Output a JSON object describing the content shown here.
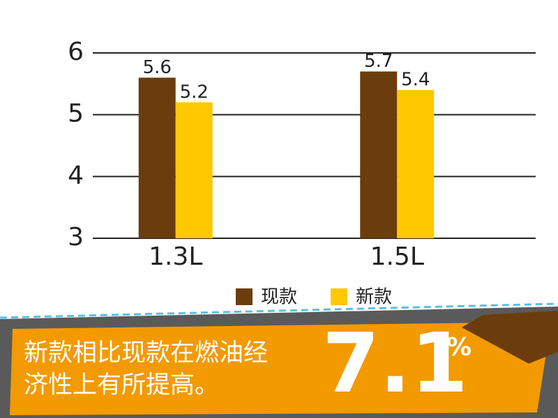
{
  "chart_data": {
    "type": "bar",
    "categories": [
      "1.3L",
      "1.5L"
    ],
    "series": [
      {
        "name": "现款",
        "color": "#6b3d0c",
        "values": [
          5.6,
          5.7
        ]
      },
      {
        "name": "新款",
        "color": "#ffc800",
        "values": [
          5.2,
          5.4
        ]
      }
    ],
    "ylim": [
      3,
      6
    ],
    "yticks": [
      3,
      4,
      5,
      6
    ],
    "grid": true,
    "legend": "bottom"
  },
  "banner": {
    "lines": [
      "新款相比现款在燃油经",
      "济性上有所提高。"
    ],
    "stat": "7.1",
    "unit": "%"
  }
}
